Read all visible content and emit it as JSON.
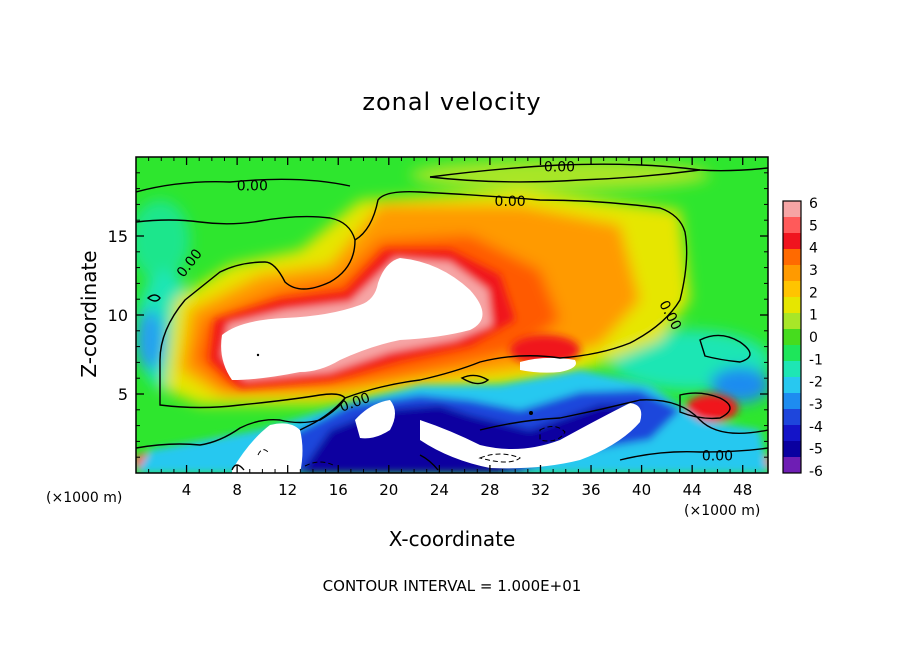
{
  "chart_data": {
    "type": "heatmap",
    "title": "zonal velocity",
    "xlabel": "X-coordinate",
    "ylabel": "Z-coordinate",
    "x_unit_left": "(×1000 m)",
    "x_unit_right": "(×1000 m)",
    "footer": "CONTOUR INTERVAL = 1.000E+01",
    "xlim": [
      0,
      50
    ],
    "ylim": [
      0,
      20
    ],
    "x_ticks": [
      4,
      8,
      12,
      16,
      20,
      24,
      28,
      32,
      36,
      40,
      44,
      48
    ],
    "y_ticks": [
      5,
      10,
      15
    ],
    "colorbar": {
      "ticks": [
        6,
        5,
        4,
        3,
        2,
        1,
        0,
        -1,
        -2,
        -3,
        -4,
        -5,
        -6
      ],
      "colors": [
        "#f6a5a5",
        "#ff5a5a",
        "#f0141e",
        "#ff6a00",
        "#ff9a00",
        "#ffc400",
        "#e6e600",
        "#a8e628",
        "#46dc1e",
        "#1ee65a",
        "#1ee6b4",
        "#28c8f0",
        "#1e8cf0",
        "#1e46dc",
        "#1414c8",
        "#0a00a0",
        "#6e1eb4"
      ]
    },
    "contour_labels": [
      {
        "text": "0.00",
        "x": 9.2,
        "z": 18.2,
        "angle": 0
      },
      {
        "text": "0.00",
        "x": 33.5,
        "z": 19.4,
        "angle": 0
      },
      {
        "text": "0.00",
        "x": 29.6,
        "z": 17.2,
        "angle": 0
      },
      {
        "text": "0.00",
        "x": 4.2,
        "z": 13.3,
        "angle": -52
      },
      {
        "text": "0.00",
        "x": 42.3,
        "z": 10.0,
        "angle": 62
      },
      {
        "text": "0.00",
        "x": 17.3,
        "z": 4.5,
        "angle": -20
      },
      {
        "text": "0.00",
        "x": 46.0,
        "z": 1.1,
        "angle": 0
      }
    ],
    "notes": "Zonal velocity field; strong positive core (>6) near x=6-27, z=7-13; negative band (< -6) near x=18-40, z=0-5."
  }
}
